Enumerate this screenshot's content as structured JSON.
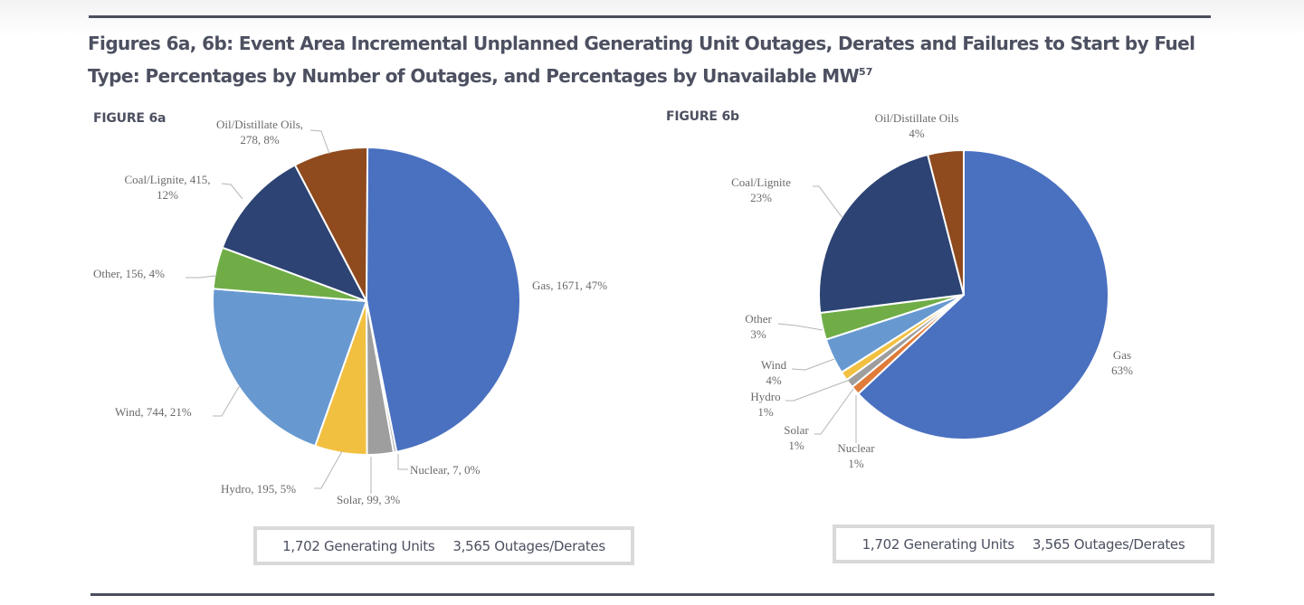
{
  "page": {
    "title_main": "Figures 6a, 6b: Event Area Incremental Unplanned Generating Unit Outages, Derates and Failures to Start by Fuel Type: Percentages by Number of Outages, and Percentages by Unavailable MW",
    "title_footnote": "57"
  },
  "colors": {
    "Gas": "#4a70c0",
    "Nuclear": "#a5a5a5",
    "Solar": "#9e9e9e",
    "Hydro": "#f2c040",
    "Wind": "#6799d0",
    "Other": "#70ad47",
    "Coal/Lignite": "#2c4373",
    "Oil/Distillate Oils": "#8f4a1e"
  },
  "chart_data": [
    {
      "type": "pie",
      "id": "fig6a",
      "title": "FIGURE 6a",
      "measure": "Number of Outages",
      "slices": [
        {
          "name": "Gas",
          "value": 1671,
          "percent": 47,
          "label": [
            "Gas, 1671,  47%"
          ]
        },
        {
          "name": "Nuclear",
          "value": 7,
          "percent": 0,
          "label": [
            "Nuclear, 7, 0%"
          ]
        },
        {
          "name": "Solar",
          "value": 99,
          "percent": 3,
          "label": [
            "Solar, 99, 3%"
          ]
        },
        {
          "name": "Hydro",
          "value": 195,
          "percent": 5,
          "label": [
            "Hydro, 195, 5%"
          ]
        },
        {
          "name": "Wind",
          "value": 744,
          "percent": 21,
          "label": [
            "Wind, 744, 21%"
          ]
        },
        {
          "name": "Other",
          "value": 156,
          "percent": 4,
          "label": [
            "Other, 156, 4%"
          ]
        },
        {
          "name": "Coal/Lignite",
          "value": 415,
          "percent": 12,
          "label": [
            "Coal/Lignite, 415,",
            "12%"
          ]
        },
        {
          "name": "Oil/Distillate Oils",
          "value": 278,
          "percent": 8,
          "label": [
            "Oil/Distillate Oils,",
            "278, 8%"
          ]
        }
      ],
      "summary": {
        "units": "1,702 Generating Units",
        "outages": "3,565 Outages/Derates"
      }
    },
    {
      "type": "pie",
      "id": "fig6b",
      "title": "FIGURE 6b",
      "measure": "Unavailable MW",
      "slices": [
        {
          "name": "Gas",
          "percent": 63,
          "label": [
            "Gas",
            "63%"
          ]
        },
        {
          "name": "Nuclear",
          "percent": 1,
          "label": [
            "Nuclear",
            "1%"
          ]
        },
        {
          "name": "Solar",
          "percent": 1,
          "label": [
            "Solar",
            "1%"
          ]
        },
        {
          "name": "Hydro",
          "percent": 1,
          "label": [
            "Hydro",
            "1%"
          ]
        },
        {
          "name": "Wind",
          "percent": 4,
          "label": [
            "Wind",
            "4%"
          ]
        },
        {
          "name": "Other",
          "percent": 3,
          "label": [
            "Other",
            "3%"
          ]
        },
        {
          "name": "Coal/Lignite",
          "percent": 23,
          "label": [
            "Coal/Lignite",
            "23%"
          ]
        },
        {
          "name": "Oil/Distillate Oils",
          "percent": 4,
          "label": [
            "Oil/Distillate Oils",
            "4%"
          ]
        }
      ],
      "summary": {
        "units": "1,702 Generating Units",
        "outages": "3,565 Outages/Derates"
      }
    }
  ]
}
